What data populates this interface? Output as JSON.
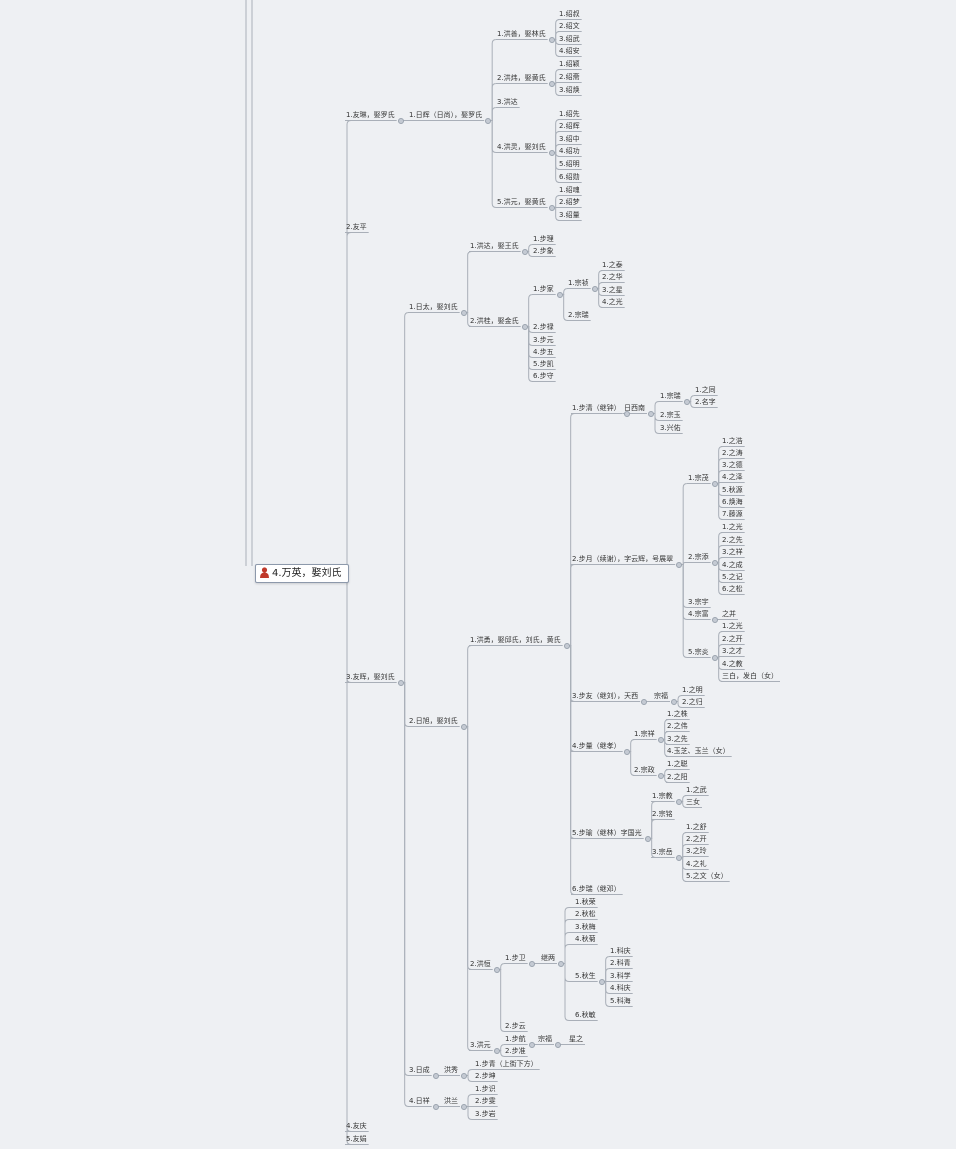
{
  "root": {
    "label": "4.万英，娶刘氏",
    "icon": "person-icon",
    "icon_color": "#c0392b"
  },
  "nodes": [
    {
      "id": "n1",
      "label": "1.友琳，娶罗氏"
    },
    {
      "id": "n2",
      "label": "1.日辉（日尚），娶罗氏"
    },
    {
      "id": "n3",
      "label": "1.洪善，娶林氏"
    },
    {
      "id": "n4",
      "label": "1.绍叔"
    },
    {
      "id": "n5",
      "label": "2.绍文"
    },
    {
      "id": "n6",
      "label": "3.绍武"
    },
    {
      "id": "n7",
      "label": "4.绍安"
    },
    {
      "id": "n8",
      "label": "2.洪炜，娶黄氏"
    },
    {
      "id": "n9",
      "label": "1.绍颖"
    },
    {
      "id": "n10",
      "label": "2.绍斋"
    },
    {
      "id": "n11",
      "label": "3.绍焕"
    },
    {
      "id": "n12",
      "label": "3.洪达"
    },
    {
      "id": "n13",
      "label": "4.洪灵，娶刘氏"
    },
    {
      "id": "n14",
      "label": "1.绍先"
    },
    {
      "id": "n15",
      "label": "2.绍辉"
    },
    {
      "id": "n16",
      "label": "3.绍中"
    },
    {
      "id": "n17",
      "label": "4.绍功"
    },
    {
      "id": "n18",
      "label": "5.绍明"
    },
    {
      "id": "n19",
      "label": "6.绍勋"
    },
    {
      "id": "n20",
      "label": "5.洪元，娶黄氏"
    },
    {
      "id": "n21",
      "label": "1.绍魂"
    },
    {
      "id": "n22",
      "label": "2.绍梦"
    },
    {
      "id": "n23",
      "label": "3.绍量"
    },
    {
      "id": "n24",
      "label": "2.友平"
    },
    {
      "id": "n25",
      "label": "3.友晖，娶刘氏"
    },
    {
      "id": "n26",
      "label": "1.日太，娶刘氏"
    },
    {
      "id": "n27",
      "label": "1.洪达，娶王氏"
    },
    {
      "id": "n28",
      "label": "1.步理"
    },
    {
      "id": "n29",
      "label": "2.步象"
    },
    {
      "id": "n30",
      "label": "2.洪桂，娶金氏"
    },
    {
      "id": "n31",
      "label": "1.步家"
    },
    {
      "id": "n32",
      "label": "1.宗祯"
    },
    {
      "id": "n33",
      "label": "1.之泰"
    },
    {
      "id": "n34",
      "label": "2.之华"
    },
    {
      "id": "n35",
      "label": "3.之星"
    },
    {
      "id": "n36",
      "label": "4.之光"
    },
    {
      "id": "n37",
      "label": "2.宗瑞"
    },
    {
      "id": "n38",
      "label": "2.步禄"
    },
    {
      "id": "n39",
      "label": "3.步元"
    },
    {
      "id": "n40",
      "label": "4.步五"
    },
    {
      "id": "n41",
      "label": "5.步凯"
    },
    {
      "id": "n42",
      "label": "6.步守"
    },
    {
      "id": "n43",
      "label": "2.日旭，娶刘氏"
    },
    {
      "id": "n44",
      "label": "1.洪勇，娶邱氏，刘氏，黄氏"
    },
    {
      "id": "n45",
      "label": "1.步清（继钟）"
    },
    {
      "id": "n46",
      "label": "日西南"
    },
    {
      "id": "n47",
      "label": "1.宗瑞"
    },
    {
      "id": "n48",
      "label": "1.之同"
    },
    {
      "id": "n49",
      "label": "2.名字"
    },
    {
      "id": "n50",
      "label": "2.宗玉"
    },
    {
      "id": "n51",
      "label": "3.兴佑"
    },
    {
      "id": "n52",
      "label": "2.步月（续谢），字云辉，号展翠"
    },
    {
      "id": "n53",
      "label": "1.宗茂"
    },
    {
      "id": "n54",
      "label": "1.之浩"
    },
    {
      "id": "n55",
      "label": "2.之涛"
    },
    {
      "id": "n56",
      "label": "3.之德"
    },
    {
      "id": "n57",
      "label": "4.之泽"
    },
    {
      "id": "n58",
      "label": "5.秋源"
    },
    {
      "id": "n59",
      "label": "6.焕海"
    },
    {
      "id": "n60",
      "label": "7.藤源"
    },
    {
      "id": "n61",
      "label": "2.宗添"
    },
    {
      "id": "n62",
      "label": "1.之光"
    },
    {
      "id": "n63",
      "label": "2.之先"
    },
    {
      "id": "n64",
      "label": "3.之祥"
    },
    {
      "id": "n65",
      "label": "4.之成"
    },
    {
      "id": "n66",
      "label": "5.之记"
    },
    {
      "id": "n67",
      "label": "6.之松"
    },
    {
      "id": "n68",
      "label": "3.宗宇"
    },
    {
      "id": "n69",
      "label": "4.宗富"
    },
    {
      "id": "n70",
      "label": "之并"
    },
    {
      "id": "n71",
      "label": "5.宗炎"
    },
    {
      "id": "n72",
      "label": "1.之光"
    },
    {
      "id": "n73",
      "label": "2.之开"
    },
    {
      "id": "n74",
      "label": "3.之才"
    },
    {
      "id": "n75",
      "label": "4.之教"
    },
    {
      "id": "n76",
      "label": "三白，发白（女）"
    },
    {
      "id": "n77",
      "label": "3.步友（继刘），天西"
    },
    {
      "id": "n78",
      "label": "宗福"
    },
    {
      "id": "n79",
      "label": "1.之明"
    },
    {
      "id": "n80",
      "label": "2.之归"
    },
    {
      "id": "n81",
      "label": "4.步量（继孝）"
    },
    {
      "id": "n82",
      "label": "1.宗祥"
    },
    {
      "id": "n83",
      "label": "1.之株"
    },
    {
      "id": "n84",
      "label": "2.之伟"
    },
    {
      "id": "n85",
      "label": "3.之先"
    },
    {
      "id": "n86",
      "label": "4.玉芝、玉兰（女）"
    },
    {
      "id": "n87",
      "label": "2.宗政"
    },
    {
      "id": "n88",
      "label": "1.之聪"
    },
    {
      "id": "n89",
      "label": "2.之阳"
    },
    {
      "id": "n90",
      "label": "5.步瑜（继林）字国光"
    },
    {
      "id": "n91",
      "label": "1.宗教"
    },
    {
      "id": "n92",
      "label": "1.之武"
    },
    {
      "id": "n93",
      "label": "三女"
    },
    {
      "id": "n94",
      "label": "2.宗铭"
    },
    {
      "id": "n95",
      "label": "3.宗岳"
    },
    {
      "id": "n96",
      "label": "1.之舒"
    },
    {
      "id": "n97",
      "label": "2.之开"
    },
    {
      "id": "n98",
      "label": "3.之玲"
    },
    {
      "id": "n99",
      "label": "4.之礼"
    },
    {
      "id": "n100",
      "label": "5.之文（女）"
    },
    {
      "id": "n101",
      "label": "6.步瑞（继邓）"
    },
    {
      "id": "n102",
      "label": "2.洪恒"
    },
    {
      "id": "n103",
      "label": "1.步卫"
    },
    {
      "id": "n104",
      "label": "继两"
    },
    {
      "id": "n105",
      "label": "1.秋荣"
    },
    {
      "id": "n106",
      "label": "2.秋松"
    },
    {
      "id": "n107",
      "label": "3.秋梅"
    },
    {
      "id": "n108",
      "label": "4.秋菊"
    },
    {
      "id": "n109",
      "label": "5.秋生"
    },
    {
      "id": "n110",
      "label": "1.科庆"
    },
    {
      "id": "n111",
      "label": "2.科青"
    },
    {
      "id": "n112",
      "label": "3.科学"
    },
    {
      "id": "n113",
      "label": "4.科庆"
    },
    {
      "id": "n114",
      "label": "5.科海"
    },
    {
      "id": "n115",
      "label": "6.秋敏"
    },
    {
      "id": "n116",
      "label": "2.步云"
    },
    {
      "id": "n117",
      "label": "3.洪元"
    },
    {
      "id": "n118",
      "label": "1.步航"
    },
    {
      "id": "n119",
      "label": "宗福"
    },
    {
      "id": "n120",
      "label": "星之"
    },
    {
      "id": "n121",
      "label": "2.步准"
    },
    {
      "id": "n122",
      "label": "3.日成"
    },
    {
      "id": "n123",
      "label": "洪秀"
    },
    {
      "id": "n124",
      "label": "1.步青（上街下方）"
    },
    {
      "id": "n125",
      "label": "2.步坤"
    },
    {
      "id": "n126",
      "label": "4.日祥"
    },
    {
      "id": "n127",
      "label": "洪兰"
    },
    {
      "id": "n128",
      "label": "1.步识"
    },
    {
      "id": "n129",
      "label": "2.步雯"
    },
    {
      "id": "n130",
      "label": "3.步岩"
    },
    {
      "id": "n131",
      "label": "4.友庆"
    },
    {
      "id": "n132",
      "label": "5.友娟"
    }
  ]
}
